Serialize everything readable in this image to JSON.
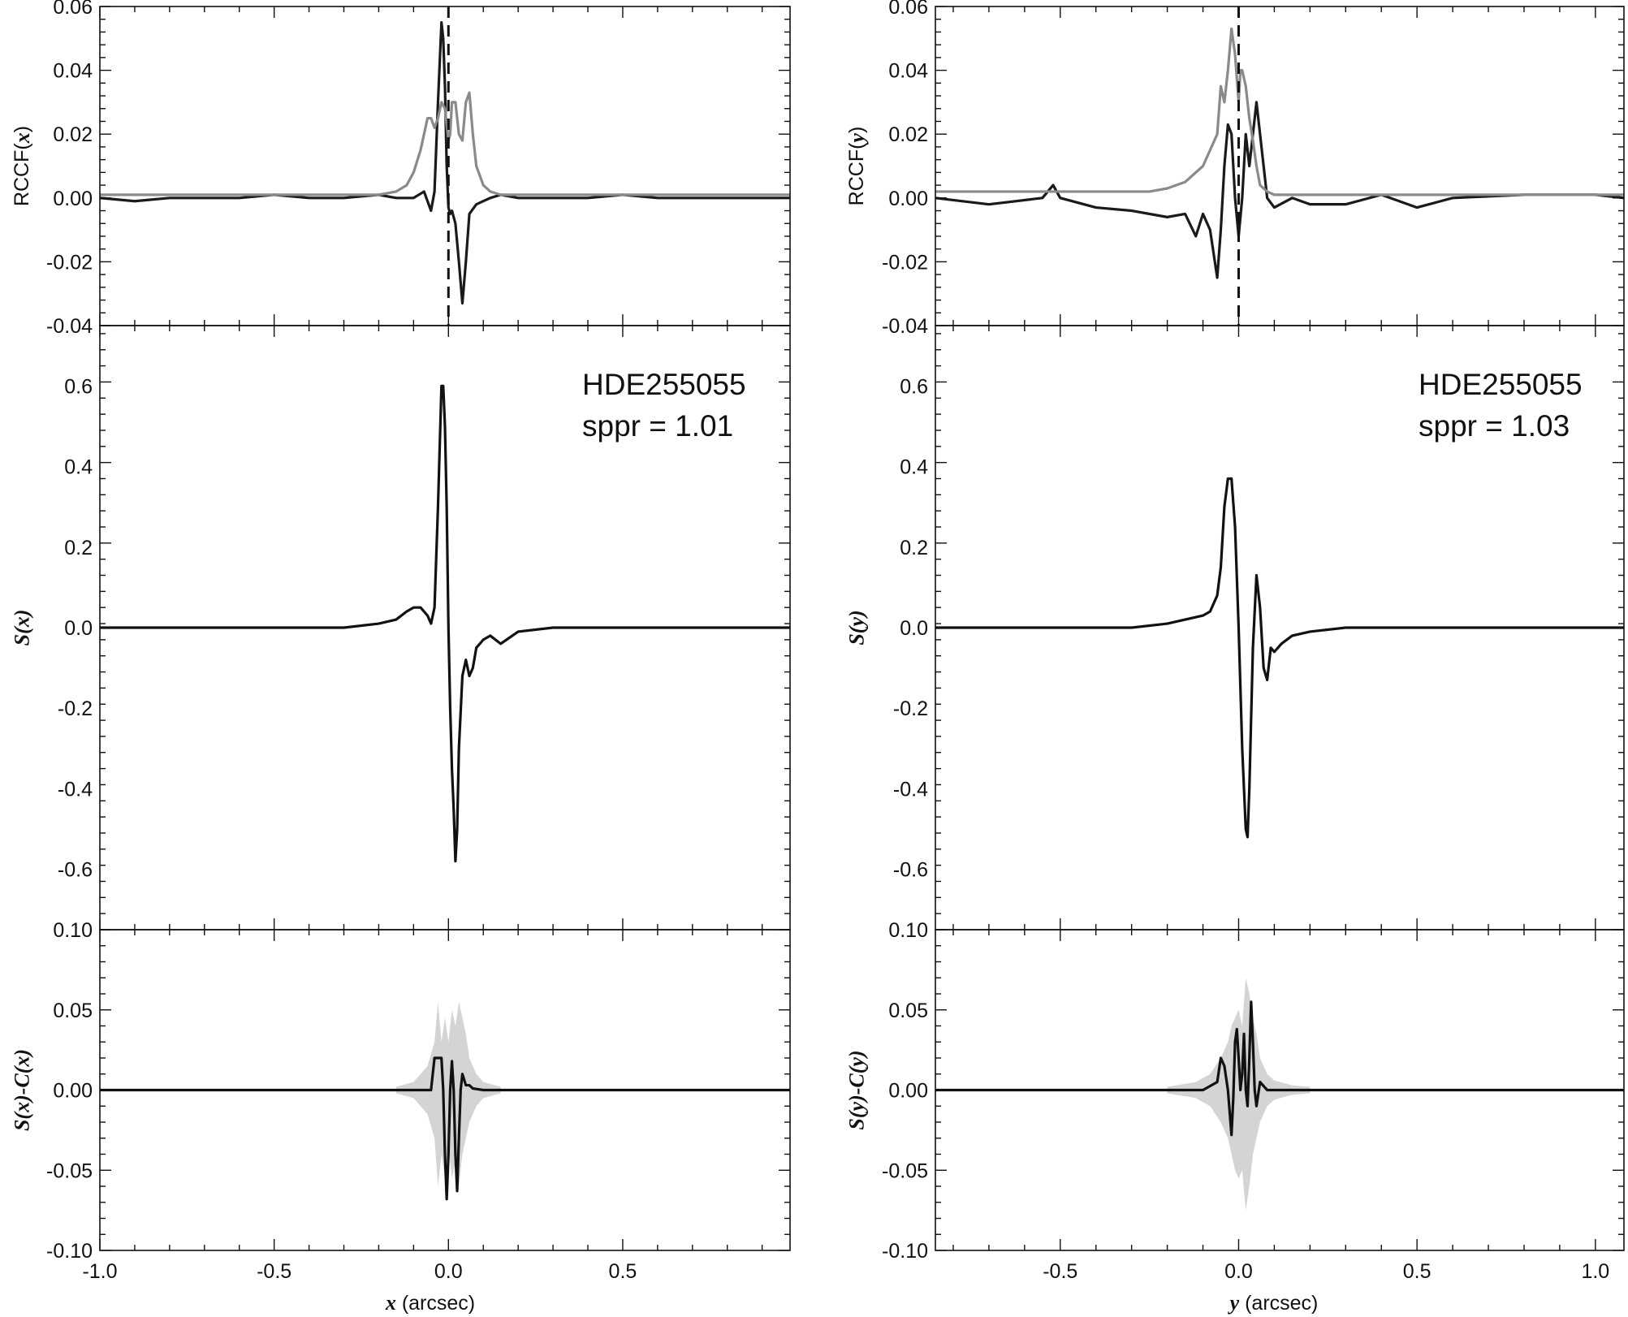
{
  "chart_data": [
    {
      "type": "line",
      "panel": "left-top",
      "ylabel": "RCCF(x)",
      "ylabel_parts": [
        "RCCF(",
        "x",
        ")"
      ],
      "xlim": [
        -1.0,
        0.98
      ],
      "ylim": [
        -0.04,
        0.06
      ],
      "yticks": [
        -0.04,
        -0.02,
        0.0,
        0.02,
        0.04,
        0.06
      ],
      "ytick_labels": [
        "-0.04",
        "-0.02",
        "0.00",
        "0.02",
        "0.04",
        "0.06"
      ],
      "reference_line": {
        "x": 0.0,
        "style": "dashed"
      },
      "series": [
        {
          "color": "#1a1a1a",
          "x": [
            -1.0,
            -0.9,
            -0.8,
            -0.7,
            -0.6,
            -0.5,
            -0.4,
            -0.3,
            -0.2,
            -0.15,
            -0.1,
            -0.07,
            -0.05,
            -0.04,
            -0.03,
            -0.02,
            -0.015,
            -0.01,
            -0.005,
            0.0,
            0.005,
            0.01,
            0.02,
            0.03,
            0.04,
            0.05,
            0.06,
            0.08,
            0.1,
            0.12,
            0.15,
            0.2,
            0.3,
            0.4,
            0.5,
            0.6,
            0.7,
            0.8,
            0.9,
            0.98
          ],
          "y": [
            0.0,
            -0.001,
            0.0,
            0.0,
            0.0,
            0.001,
            0.0,
            0.0,
            0.001,
            0.0,
            0.0,
            0.002,
            -0.004,
            0.002,
            0.03,
            0.055,
            0.05,
            0.035,
            0.01,
            -0.003,
            -0.005,
            -0.004,
            -0.008,
            -0.02,
            -0.033,
            -0.02,
            -0.005,
            -0.002,
            -0.001,
            0.0,
            0.001,
            0.0,
            0.0,
            0.0,
            0.001,
            0.0,
            0.0,
            0.0,
            0.0,
            0.0
          ]
        },
        {
          "color": "#8a8a8a",
          "x": [
            -1.0,
            -0.8,
            -0.6,
            -0.4,
            -0.2,
            -0.15,
            -0.12,
            -0.1,
            -0.08,
            -0.06,
            -0.05,
            -0.04,
            -0.03,
            -0.02,
            -0.01,
            0.0,
            0.005,
            0.01,
            0.02,
            0.03,
            0.04,
            0.05,
            0.06,
            0.07,
            0.08,
            0.1,
            0.12,
            0.15,
            0.2,
            0.3,
            0.5,
            0.7,
            0.98
          ],
          "y": [
            0.001,
            0.001,
            0.001,
            0.001,
            0.001,
            0.002,
            0.004,
            0.008,
            0.015,
            0.025,
            0.025,
            0.022,
            0.025,
            0.03,
            0.028,
            0.018,
            0.02,
            0.03,
            0.03,
            0.02,
            0.018,
            0.03,
            0.033,
            0.02,
            0.01,
            0.004,
            0.002,
            0.001,
            0.001,
            0.001,
            0.001,
            0.001,
            0.001
          ]
        }
      ]
    },
    {
      "type": "line",
      "panel": "left-middle",
      "ylabel": "S(x)",
      "xlim": [
        -1.0,
        0.98
      ],
      "ylim": [
        -0.75,
        0.75
      ],
      "yticks": [
        -0.6,
        -0.4,
        -0.2,
        0.0,
        0.2,
        0.4,
        0.6
      ],
      "ytick_labels": [
        "-0.6",
        "-0.4",
        "-0.2",
        "0.0",
        "0.2",
        "0.4",
        "0.6"
      ],
      "annotations": [
        "HDE255055",
        "sppr = 1.01"
      ],
      "series": [
        {
          "color": "#111111",
          "x": [
            -1.0,
            -0.8,
            -0.6,
            -0.4,
            -0.3,
            -0.2,
            -0.15,
            -0.12,
            -0.1,
            -0.08,
            -0.06,
            -0.05,
            -0.04,
            -0.03,
            -0.02,
            -0.015,
            -0.01,
            -0.005,
            0.0,
            0.005,
            0.01,
            0.015,
            0.02,
            0.025,
            0.03,
            0.04,
            0.05,
            0.06,
            0.07,
            0.08,
            0.1,
            0.12,
            0.15,
            0.2,
            0.3,
            0.5,
            0.7,
            0.98
          ],
          "y": [
            0.0,
            0.0,
            0.0,
            0.0,
            0.0,
            0.01,
            0.02,
            0.04,
            0.05,
            0.05,
            0.03,
            0.01,
            0.05,
            0.3,
            0.6,
            0.6,
            0.5,
            0.3,
            0.0,
            -0.2,
            -0.35,
            -0.45,
            -0.58,
            -0.5,
            -0.3,
            -0.12,
            -0.08,
            -0.12,
            -0.1,
            -0.05,
            -0.03,
            -0.02,
            -0.04,
            -0.01,
            0.0,
            0.0,
            0.0,
            0.0
          ]
        }
      ]
    },
    {
      "type": "area",
      "panel": "left-bottom",
      "ylabel": "S(x)-C(x)",
      "xlabel": "x (arcsec)",
      "xlabel_parts": [
        "x",
        " (arcsec)"
      ],
      "xlim": [
        -1.0,
        0.98
      ],
      "ylim": [
        -0.1,
        0.1
      ],
      "yticks": [
        -0.1,
        -0.05,
        0.0,
        0.05,
        0.1
      ],
      "ytick_labels": [
        "-0.10",
        "-0.05",
        "0.00",
        "0.05",
        "0.10"
      ],
      "xticks": [
        -1.0,
        -0.5,
        0.0,
        0.5
      ],
      "xtick_labels": [
        "-1.0",
        "-0.5",
        "0.0",
        "0.5"
      ],
      "band": {
        "color": "#d4d4d4",
        "x": [
          -0.15,
          -0.1,
          -0.06,
          -0.04,
          -0.03,
          -0.02,
          -0.01,
          0.0,
          0.01,
          0.02,
          0.03,
          0.04,
          0.05,
          0.06,
          0.08,
          0.1,
          0.15
        ],
        "upper": [
          0.002,
          0.005,
          0.015,
          0.03,
          0.055,
          0.03,
          0.045,
          0.03,
          0.05,
          0.04,
          0.055,
          0.045,
          0.035,
          0.02,
          0.01,
          0.005,
          0.002
        ],
        "lower": [
          -0.002,
          -0.005,
          -0.015,
          -0.03,
          -0.06,
          -0.04,
          -0.055,
          -0.035,
          -0.055,
          -0.045,
          -0.06,
          -0.04,
          -0.03,
          -0.02,
          -0.01,
          -0.005,
          -0.002
        ]
      },
      "series": [
        {
          "color": "#111111",
          "x": [
            -1.0,
            -0.8,
            -0.6,
            -0.4,
            -0.2,
            -0.1,
            -0.05,
            -0.04,
            -0.03,
            -0.02,
            -0.015,
            -0.01,
            -0.005,
            0.0,
            0.005,
            0.01,
            0.015,
            0.02,
            0.025,
            0.03,
            0.035,
            0.04,
            0.05,
            0.06,
            0.07,
            0.1,
            0.15,
            0.3,
            0.5,
            0.7,
            0.98
          ],
          "y": [
            0.0,
            0.0,
            0.0,
            0.0,
            0.0,
            0.0,
            0.0,
            0.02,
            0.02,
            0.02,
            0.0,
            -0.04,
            -0.068,
            -0.04,
            0.0,
            0.018,
            0.0,
            -0.04,
            -0.063,
            -0.03,
            0.0,
            0.01,
            0.003,
            0.003,
            0.001,
            0.0,
            0.0,
            0.0,
            0.0,
            0.0,
            0.0
          ]
        }
      ]
    },
    {
      "type": "line",
      "panel": "right-top",
      "ylabel": "RCCF(y)",
      "ylabel_parts": [
        "RCCF(",
        "y",
        ")"
      ],
      "xlim": [
        -0.85,
        1.08
      ],
      "ylim": [
        -0.04,
        0.06
      ],
      "yticks": [
        -0.04,
        -0.02,
        0.0,
        0.02,
        0.04,
        0.06
      ],
      "ytick_labels": [
        "-0.04",
        "-0.02",
        "0.00",
        "0.02",
        "0.04",
        "0.06"
      ],
      "reference_line": {
        "x": 0.0,
        "style": "dashed"
      },
      "series": [
        {
          "color": "#1a1a1a",
          "x": [
            -0.85,
            -0.7,
            -0.55,
            -0.52,
            -0.5,
            -0.4,
            -0.3,
            -0.2,
            -0.15,
            -0.12,
            -0.1,
            -0.08,
            -0.06,
            -0.05,
            -0.04,
            -0.03,
            -0.02,
            -0.01,
            0.0,
            0.01,
            0.02,
            0.03,
            0.04,
            0.05,
            0.06,
            0.08,
            0.1,
            0.15,
            0.2,
            0.3,
            0.4,
            0.5,
            0.6,
            0.8,
            1.0,
            1.08
          ],
          "y": [
            0.0,
            -0.002,
            0.0,
            0.004,
            0.0,
            -0.003,
            -0.004,
            -0.006,
            -0.005,
            -0.012,
            -0.005,
            -0.01,
            -0.025,
            -0.01,
            0.01,
            0.023,
            0.02,
            0.0,
            -0.012,
            0.0,
            0.02,
            0.01,
            0.02,
            0.03,
            0.02,
            0.0,
            -0.003,
            0.0,
            -0.002,
            -0.002,
            0.001,
            -0.003,
            0.0,
            0.001,
            0.001,
            0.0
          ]
        },
        {
          "color": "#8a8a8a",
          "x": [
            -0.85,
            -0.6,
            -0.4,
            -0.25,
            -0.2,
            -0.15,
            -0.1,
            -0.08,
            -0.06,
            -0.05,
            -0.04,
            -0.03,
            -0.02,
            -0.01,
            0.0,
            0.005,
            0.01,
            0.02,
            0.03,
            0.04,
            0.05,
            0.06,
            0.08,
            0.1,
            0.15,
            0.2,
            0.3,
            0.5,
            0.7,
            0.9,
            1.08
          ],
          "y": [
            0.002,
            0.002,
            0.002,
            0.002,
            0.003,
            0.005,
            0.01,
            0.015,
            0.02,
            0.035,
            0.03,
            0.04,
            0.053,
            0.045,
            0.03,
            0.04,
            0.04,
            0.035,
            0.025,
            0.018,
            0.01,
            0.004,
            0.002,
            0.001,
            0.001,
            0.001,
            0.001,
            0.001,
            0.001,
            0.001,
            0.001
          ]
        }
      ]
    },
    {
      "type": "line",
      "panel": "right-middle",
      "ylabel": "S(y)",
      "xlim": [
        -0.85,
        1.08
      ],
      "ylim": [
        -0.75,
        0.75
      ],
      "yticks": [
        -0.6,
        -0.4,
        -0.2,
        0.0,
        0.2,
        0.4,
        0.6
      ],
      "ytick_labels": [
        "-0.6",
        "-0.4",
        "-0.2",
        "0.0",
        "0.2",
        "0.4",
        "0.6"
      ],
      "annotations": [
        "HDE255055",
        "sppr = 1.03"
      ],
      "series": [
        {
          "color": "#111111",
          "x": [
            -0.85,
            -0.6,
            -0.4,
            -0.3,
            -0.2,
            -0.15,
            -0.1,
            -0.08,
            -0.06,
            -0.05,
            -0.04,
            -0.03,
            -0.02,
            -0.01,
            0.0,
            0.01,
            0.02,
            0.025,
            0.03,
            0.04,
            0.05,
            0.06,
            0.07,
            0.08,
            0.09,
            0.1,
            0.12,
            0.15,
            0.2,
            0.3,
            0.5,
            0.7,
            1.08
          ],
          "y": [
            0.0,
            0.0,
            0.0,
            0.0,
            0.01,
            0.02,
            0.03,
            0.04,
            0.08,
            0.15,
            0.3,
            0.37,
            0.37,
            0.25,
            0.0,
            -0.3,
            -0.5,
            -0.52,
            -0.4,
            -0.05,
            0.13,
            0.05,
            -0.1,
            -0.13,
            -0.05,
            -0.06,
            -0.04,
            -0.02,
            -0.01,
            0.0,
            0.0,
            0.0,
            0.0
          ]
        }
      ]
    },
    {
      "type": "area",
      "panel": "right-bottom",
      "ylabel": "S(y)-C(y)",
      "xlabel": "y (arcsec)",
      "xlabel_parts": [
        "y",
        " (arcsec)"
      ],
      "xlim": [
        -0.85,
        1.08
      ],
      "ylim": [
        -0.1,
        0.1
      ],
      "yticks": [
        -0.1,
        -0.05,
        0.0,
        0.05,
        0.1
      ],
      "ytick_labels": [
        "-0.10",
        "-0.05",
        "0.00",
        "0.05",
        "0.10"
      ],
      "xticks": [
        -0.5,
        0.0,
        0.5,
        1.0
      ],
      "xtick_labels": [
        "-0.5",
        "0.0",
        "0.5",
        "1.0"
      ],
      "band": {
        "color": "#d4d4d4",
        "x": [
          -0.2,
          -0.12,
          -0.08,
          -0.05,
          -0.03,
          -0.02,
          -0.01,
          0.0,
          0.01,
          0.02,
          0.03,
          0.04,
          0.05,
          0.06,
          0.08,
          0.1,
          0.15,
          0.2
        ],
        "upper": [
          0.002,
          0.005,
          0.01,
          0.02,
          0.03,
          0.04,
          0.045,
          0.05,
          0.04,
          0.07,
          0.06,
          0.045,
          0.035,
          0.02,
          0.01,
          0.006,
          0.003,
          0.002
        ],
        "lower": [
          -0.002,
          -0.005,
          -0.01,
          -0.02,
          -0.03,
          -0.04,
          -0.05,
          -0.055,
          -0.05,
          -0.075,
          -0.06,
          -0.04,
          -0.03,
          -0.02,
          -0.01,
          -0.006,
          -0.003,
          -0.002
        ]
      },
      "series": [
        {
          "color": "#111111",
          "x": [
            -0.85,
            -0.6,
            -0.4,
            -0.2,
            -0.1,
            -0.06,
            -0.05,
            -0.04,
            -0.03,
            -0.02,
            -0.015,
            -0.01,
            -0.005,
            0.0,
            0.005,
            0.01,
            0.015,
            0.02,
            0.025,
            0.03,
            0.035,
            0.04,
            0.045,
            0.05,
            0.06,
            0.08,
            0.1,
            0.2,
            0.4,
            0.6,
            0.8,
            1.08
          ],
          "y": [
            0.0,
            0.0,
            0.0,
            0.0,
            0.0,
            0.005,
            0.02,
            0.015,
            0.0,
            -0.028,
            -0.005,
            0.03,
            0.038,
            0.02,
            0.0,
            0.01,
            0.035,
            0.0,
            -0.01,
            0.02,
            0.055,
            0.03,
            0.0,
            -0.01,
            0.005,
            0.0,
            0.0,
            0.0,
            0.0,
            0.0,
            0.0,
            0.0
          ]
        }
      ]
    }
  ]
}
